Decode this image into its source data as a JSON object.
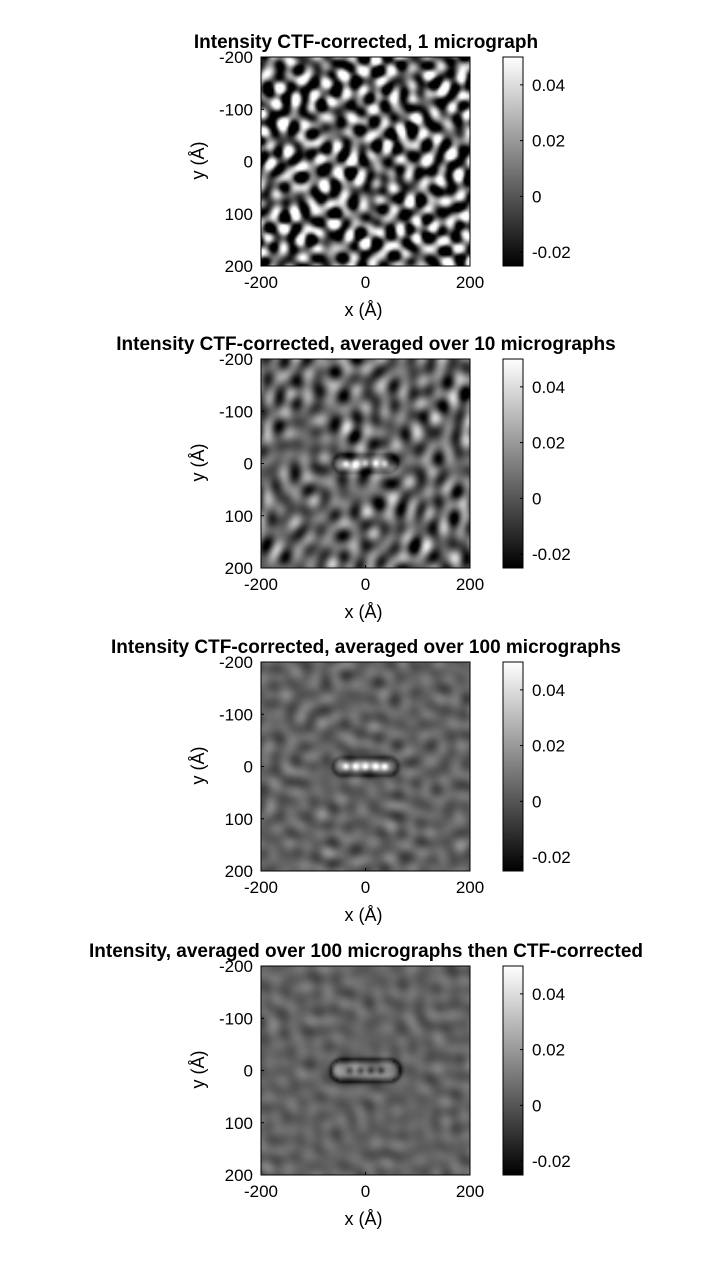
{
  "figure": {
    "x_axis_label": "x (Å)",
    "y_axis_label": "y (Å)"
  },
  "chart_data": [
    {
      "type": "heatmap",
      "title": "Intensity CTF-corrected, 1 micrograph",
      "xlabel": "x (Å)",
      "ylabel": "y (Å)",
      "xlim": [
        -200,
        200
      ],
      "ylim": [
        -200,
        200
      ],
      "x_ticks": [
        "-200",
        "0",
        "200"
      ],
      "y_ticks": [
        "-200",
        "-100",
        "0",
        "100",
        "200"
      ],
      "y_reversed": true,
      "colormap": "gray",
      "clim": [
        -0.025,
        0.05
      ],
      "colorbar_ticks": [
        "0.04",
        "0.02",
        "0",
        "-0.02"
      ],
      "colorbar_tick_values": [
        0.04,
        0.02,
        0,
        -0.02
      ],
      "noise_amplitude": 0.03,
      "noise_contrast": "high",
      "particle": null
    },
    {
      "type": "heatmap",
      "title": "Intensity CTF-corrected, averaged over 10 micrographs",
      "xlabel": "x (Å)",
      "ylabel": "y (Å)",
      "xlim": [
        -200,
        200
      ],
      "ylim": [
        -200,
        200
      ],
      "x_ticks": [
        "-200",
        "0",
        "200"
      ],
      "y_ticks": [
        "-200",
        "-100",
        "0",
        "100",
        "200"
      ],
      "y_reversed": true,
      "colormap": "gray",
      "clim": [
        -0.025,
        0.05
      ],
      "colorbar_ticks": [
        "0.04",
        "0.02",
        "0",
        "-0.02"
      ],
      "colorbar_tick_values": [
        0.04,
        0.02,
        0,
        -0.02
      ],
      "noise_amplitude": 0.011,
      "noise_contrast": "medium",
      "particle": {
        "center": [
          0,
          0
        ],
        "length": 120,
        "width": 30,
        "spots": [
          -37,
          -19,
          0,
          19,
          37
        ],
        "spot_value": 0.045
      }
    },
    {
      "type": "heatmap",
      "title": "Intensity CTF-corrected, averaged over 100 micrographs",
      "xlabel": "x (Å)",
      "ylabel": "y (Å)",
      "xlim": [
        -200,
        200
      ],
      "ylim": [
        -200,
        200
      ],
      "x_ticks": [
        "-200",
        "0",
        "200"
      ],
      "y_ticks": [
        "-200",
        "-100",
        "0",
        "100",
        "200"
      ],
      "y_reversed": true,
      "colormap": "gray",
      "clim": [
        -0.025,
        0.05
      ],
      "colorbar_ticks": [
        "0.04",
        "0.02",
        "0",
        "-0.02"
      ],
      "colorbar_tick_values": [
        0.04,
        0.02,
        0,
        -0.02
      ],
      "noise_amplitude": 0.004,
      "noise_contrast": "low",
      "particle": {
        "center": [
          0,
          0
        ],
        "length": 120,
        "width": 30,
        "spots": [
          -37,
          -19,
          0,
          19,
          37
        ],
        "spot_value": 0.048
      }
    },
    {
      "type": "heatmap",
      "title": "Intensity, averaged over 100 micrographs then CTF-corrected",
      "xlabel": "x (Å)",
      "ylabel": "y (Å)",
      "xlim": [
        -200,
        200
      ],
      "ylim": [
        -200,
        200
      ],
      "x_ticks": [
        "-200",
        "0",
        "200"
      ],
      "y_ticks": [
        "-200",
        "-100",
        "0",
        "100",
        "200"
      ],
      "y_reversed": true,
      "colormap": "gray",
      "clim": [
        -0.025,
        0.05
      ],
      "colorbar_ticks": [
        "0.04",
        "0.02",
        "0",
        "-0.02"
      ],
      "colorbar_tick_values": [
        0.04,
        0.02,
        0,
        -0.02
      ],
      "noise_amplitude": 0.003,
      "noise_contrast": "low",
      "particle": {
        "center": [
          0,
          0
        ],
        "length": 130,
        "width": 38,
        "spots": [
          -30,
          -10,
          10,
          30
        ],
        "spot_value": -0.02
      }
    }
  ]
}
